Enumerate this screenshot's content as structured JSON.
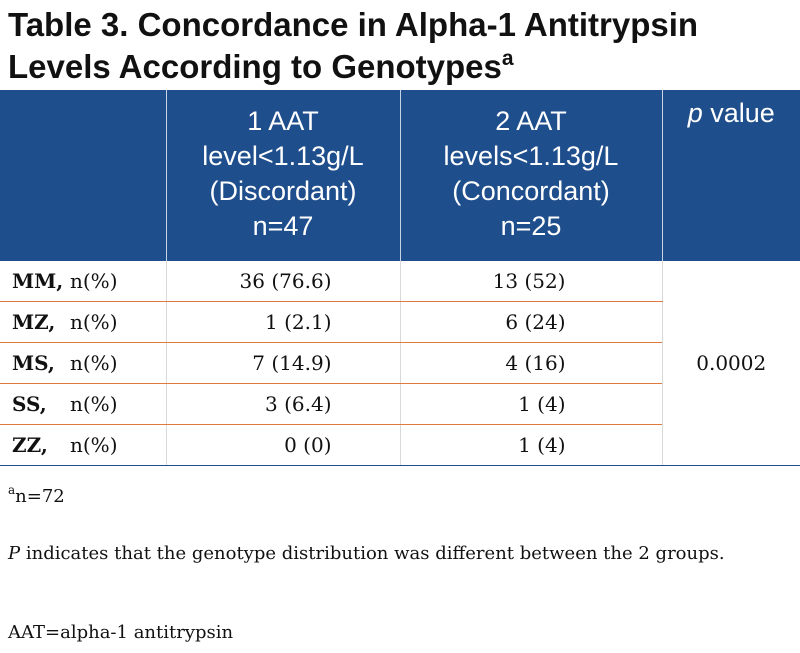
{
  "title": {
    "line1": "Table 3. Concordance in Alpha-1 Antitrypsin",
    "line2": "Levels According to Genotypes",
    "superscript": "a"
  },
  "table": {
    "headers": {
      "discordant": [
        "1 AAT",
        "level<1.13g/L",
        "(Discordant)",
        "n=47"
      ],
      "concordant": [
        "2 AAT",
        "levels<1.13g/L",
        "(Concordant)",
        "n=25"
      ],
      "pvalue_p": "p",
      "pvalue_rest": " value"
    },
    "rows": [
      {
        "genotype": "MM,",
        "unit": "n(%)",
        "discordant": "36 (76.6)",
        "concordant": "13 (52)"
      },
      {
        "genotype": "MZ,",
        "unit": "n(%)",
        "discordant": "1 (2.1)",
        "concordant": "6 (24)"
      },
      {
        "genotype": "MS,",
        "unit": "n(%)",
        "discordant": "7 (14.9)",
        "concordant": "4 (16)"
      },
      {
        "genotype": "SS,",
        "unit": "n(%)",
        "discordant": "3 (6.4)",
        "concordant": "1 (4)"
      },
      {
        "genotype": "ZZ,",
        "unit": "n(%)",
        "discordant": "0 (0)",
        "concordant": "1 (4)"
      }
    ],
    "p_value": "0.0002"
  },
  "footnotes": {
    "n_superscript": "a",
    "n_text": "n=72",
    "p_symbol": "P",
    "p_text": " indicates that the genotype distribution was different between the 2 groups.",
    "abbrev": "AAT=alpha-1 antitrypsin"
  },
  "colors": {
    "header_bg": "#1f4e8c",
    "row_divider": "#e07a3c"
  }
}
